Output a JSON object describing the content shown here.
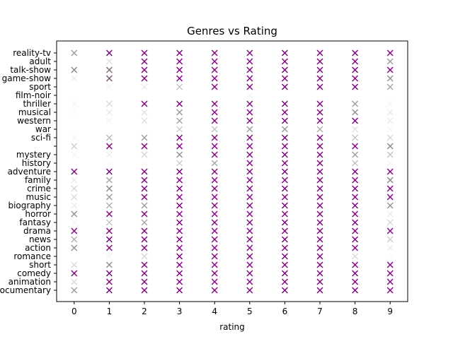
{
  "chart_data": {
    "type": "scatter",
    "title": "Genres vs Rating",
    "xlabel": "rating",
    "ylabel": "",
    "xlim": [
      -0.5,
      9.5
    ],
    "x_ticks": [
      0,
      1,
      2,
      3,
      4,
      5,
      6,
      7,
      8,
      9
    ],
    "marker": "x",
    "marker_color": "#800080",
    "grid": false,
    "genres": [
      "reality-tv",
      "adult",
      "talk-show",
      "game-show",
      "sport",
      "film-noir",
      "thriller",
      "musical",
      "western",
      "war",
      "sci-fi",
      "",
      "mystery",
      "history",
      "adventure",
      "family",
      "crime",
      "music",
      "biography",
      "horror",
      "fantasy",
      "drama",
      "news",
      "action",
      "romance",
      "short",
      "comedy",
      "animation",
      "documentary"
    ],
    "intensity": [
      [
        0.5,
        1.0,
        1.0,
        1.0,
        1.0,
        1.0,
        1.0,
        1.0,
        1.0,
        1.0
      ],
      [
        0.0,
        0.15,
        1.0,
        1.0,
        1.0,
        1.0,
        1.0,
        1.0,
        1.0,
        0.5
      ],
      [
        0.6,
        0.65,
        1.0,
        1.0,
        1.0,
        1.0,
        1.0,
        1.0,
        1.0,
        1.0
      ],
      [
        0.1,
        0.7,
        1.0,
        1.0,
        1.0,
        1.0,
        1.0,
        1.0,
        1.0,
        0.55
      ],
      [
        0.0,
        0.05,
        0.1,
        0.3,
        1.0,
        1.0,
        1.0,
        1.0,
        1.0,
        0.45
      ],
      [
        0.0,
        0.0,
        0.0,
        0.0,
        0.0,
        0.05,
        0.0,
        0.0,
        0.0,
        0.0
      ],
      [
        0.05,
        0.2,
        1.0,
        1.0,
        1.0,
        1.0,
        1.0,
        1.0,
        0.5,
        0.05
      ],
      [
        0.03,
        0.1,
        0.15,
        0.5,
        1.0,
        1.0,
        1.0,
        1.0,
        0.55,
        0.1
      ],
      [
        0.0,
        0.05,
        0.15,
        0.45,
        1.0,
        1.0,
        1.0,
        1.0,
        1.0,
        0.1
      ],
      [
        0.0,
        0.0,
        0.02,
        0.25,
        0.3,
        0.5,
        0.5,
        0.4,
        0.15,
        0.05
      ],
      [
        0.05,
        0.35,
        0.5,
        1.0,
        1.0,
        1.0,
        1.0,
        1.0,
        0.3,
        0.2
      ],
      [
        0.25,
        1.0,
        1.0,
        1.0,
        1.0,
        1.0,
        1.0,
        1.0,
        1.0,
        0.6
      ],
      [
        0.05,
        0.1,
        0.2,
        0.55,
        1.0,
        1.0,
        1.0,
        1.0,
        0.5,
        0.3
      ],
      [
        0.0,
        0.03,
        0.03,
        0.25,
        0.45,
        1.0,
        1.0,
        1.0,
        0.3,
        0.05
      ],
      [
        1.0,
        1.0,
        1.0,
        1.0,
        1.0,
        1.0,
        1.0,
        1.0,
        1.0,
        1.0
      ],
      [
        0.1,
        0.45,
        1.0,
        1.0,
        1.0,
        1.0,
        1.0,
        1.0,
        1.0,
        0.6
      ],
      [
        0.2,
        0.6,
        1.0,
        1.0,
        1.0,
        1.0,
        1.0,
        1.0,
        1.0,
        1.0
      ],
      [
        0.2,
        0.5,
        1.0,
        1.0,
        1.0,
        1.0,
        1.0,
        1.0,
        1.0,
        1.0
      ],
      [
        0.1,
        0.4,
        0.5,
        1.0,
        1.0,
        1.0,
        1.0,
        1.0,
        1.0,
        0.55
      ],
      [
        0.55,
        1.0,
        1.0,
        1.0,
        1.0,
        1.0,
        1.0,
        1.0,
        1.0,
        0.1
      ],
      [
        0.05,
        0.3,
        0.45,
        1.0,
        1.0,
        1.0,
        1.0,
        1.0,
        1.0,
        0.2
      ],
      [
        1.0,
        1.0,
        1.0,
        1.0,
        1.0,
        1.0,
        1.0,
        1.0,
        1.0,
        1.0
      ],
      [
        0.4,
        1.0,
        1.0,
        1.0,
        1.0,
        1.0,
        1.0,
        1.0,
        1.0,
        0.25
      ],
      [
        0.55,
        1.0,
        1.0,
        1.0,
        1.0,
        1.0,
        1.0,
        1.0,
        1.0,
        0.1
      ],
      [
        0.0,
        0.05,
        0.2,
        1.0,
        1.0,
        1.0,
        1.0,
        1.0,
        0.2,
        0.02
      ],
      [
        0.2,
        0.55,
        1.0,
        1.0,
        1.0,
        1.0,
        1.0,
        1.0,
        1.0,
        1.0
      ],
      [
        1.0,
        1.0,
        1.0,
        1.0,
        1.0,
        1.0,
        1.0,
        1.0,
        1.0,
        1.0
      ],
      [
        0.2,
        1.0,
        1.0,
        1.0,
        1.0,
        1.0,
        1.0,
        1.0,
        1.0,
        1.0
      ],
      [
        0.5,
        1.0,
        1.0,
        1.0,
        1.0,
        1.0,
        1.0,
        1.0,
        1.0,
        1.0
      ]
    ]
  }
}
